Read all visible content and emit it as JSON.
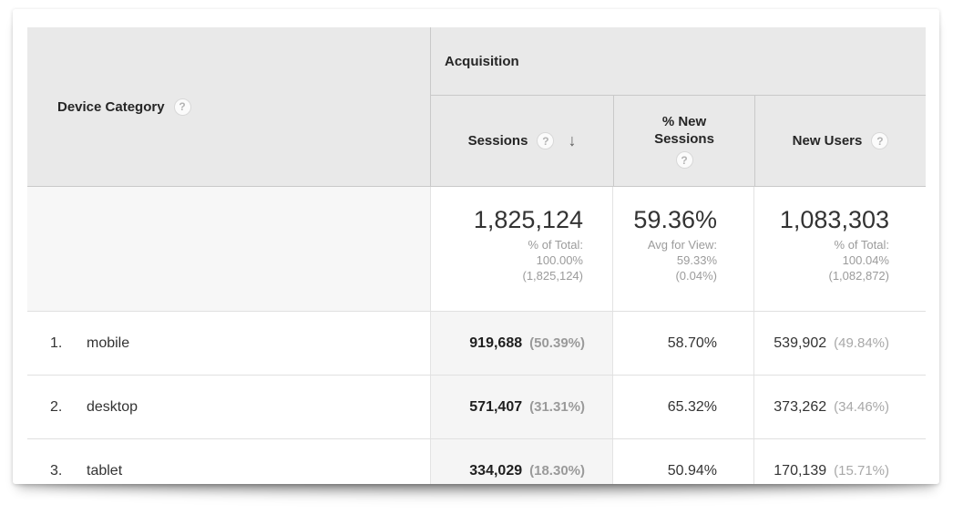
{
  "icons": {
    "help": "?",
    "sort_desc": "↓"
  },
  "colors": {
    "header_bg": "#e9e9e9",
    "sorted_column_bg": "#f5f5f5",
    "summary_dimension_bg": "#f7f7f7",
    "text_dark": "#333333",
    "text_gray": "#9b9b9b",
    "header_border": "#c9c9c9",
    "body_border": "#e0e0e0"
  },
  "table": {
    "dimension_header": {
      "label": "Device Category"
    },
    "group_header": {
      "label": "Acquisition"
    },
    "columns": {
      "sessions": {
        "label": "Sessions",
        "sorted": "descending"
      },
      "new_sessions": {
        "label": "% New Sessions"
      },
      "new_users": {
        "label": "New Users"
      }
    },
    "summary": {
      "sessions": {
        "value": "1,825,124",
        "sub1": "% of Total:",
        "sub2": "100.00%",
        "sub3": "(1,825,124)"
      },
      "new_sessions": {
        "value": "59.36%",
        "sub1": "Avg for View:",
        "sub2": "59.33%",
        "sub3": "(0.04%)"
      },
      "new_users": {
        "value": "1,083,303",
        "sub1": "% of Total:",
        "sub2": "100.04%",
        "sub3": "(1,082,872)"
      }
    },
    "rows": [
      {
        "rank": "1.",
        "label": "mobile",
        "sessions": "919,688",
        "sessions_pct": "(50.39%)",
        "new_sessions": "58.70%",
        "new_users": "539,902",
        "new_users_pct": "(49.84%)"
      },
      {
        "rank": "2.",
        "label": "desktop",
        "sessions": "571,407",
        "sessions_pct": "(31.31%)",
        "new_sessions": "65.32%",
        "new_users": "373,262",
        "new_users_pct": "(34.46%)"
      },
      {
        "rank": "3.",
        "label": "tablet",
        "sessions": "334,029",
        "sessions_pct": "(18.30%)",
        "new_sessions": "50.94%",
        "new_users": "170,139",
        "new_users_pct": "(15.71%)"
      }
    ]
  }
}
